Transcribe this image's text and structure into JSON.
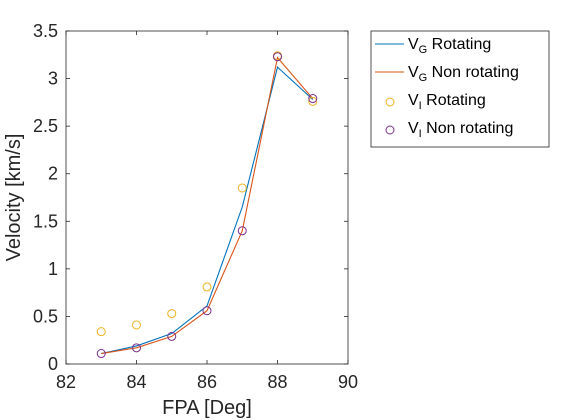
{
  "chart_data": {
    "type": "line",
    "xlabel": "FPA [Deg]",
    "ylabel": "Velocity [km/s]",
    "xlim": [
      82,
      90
    ],
    "ylim": [
      0,
      3.5
    ],
    "xticks": [
      "82",
      "84",
      "86",
      "88",
      "90"
    ],
    "yticks": [
      "0",
      "0.5",
      "1",
      "1.5",
      "2",
      "2.5",
      "3",
      "3.5"
    ],
    "grid": false,
    "legend_position": "outside-right",
    "series": [
      {
        "name": "V_G Rotating",
        "label_main": "V",
        "label_sub": "G",
        "label_rest": " Rotating",
        "style": "line",
        "color": "#0072bd",
        "x": [
          83,
          84,
          85,
          86,
          87,
          88,
          89
        ],
        "y": [
          0.11,
          0.19,
          0.32,
          0.61,
          1.65,
          3.12,
          2.78
        ]
      },
      {
        "name": "V_G Non rotating",
        "label_main": "V",
        "label_sub": "G",
        "label_rest": " Non rotating",
        "style": "line",
        "color": "#d95319",
        "x": [
          83,
          84,
          85,
          86,
          87,
          88,
          89
        ],
        "y": [
          0.11,
          0.17,
          0.29,
          0.56,
          1.4,
          3.22,
          2.79
        ]
      },
      {
        "name": "V_I Rotating",
        "label_main": "V",
        "label_sub": "I",
        "label_rest": " Rotating",
        "style": "marker",
        "color": "#edb120",
        "x": [
          83,
          84,
          85,
          86,
          87,
          88,
          89
        ],
        "y": [
          0.34,
          0.41,
          0.53,
          0.81,
          1.85,
          3.24,
          2.76
        ]
      },
      {
        "name": "V_I Non rotating",
        "label_main": "V",
        "label_sub": "I",
        "label_rest": " Non rotating",
        "style": "marker",
        "color": "#7e2f8e",
        "x": [
          83,
          84,
          85,
          86,
          87,
          88,
          89
        ],
        "y": [
          0.11,
          0.17,
          0.29,
          0.56,
          1.4,
          3.23,
          2.79
        ]
      }
    ]
  }
}
